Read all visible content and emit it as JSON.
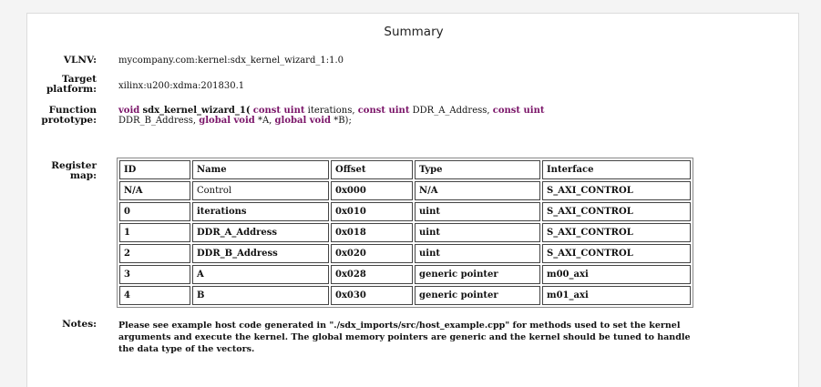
{
  "summary": {
    "title": "Summary",
    "vlnv_label": "VLNV:",
    "vlnv_value": "mycompany.com:kernel:sdx_kernel_wizard_1:1.0",
    "target_label_1": "Target",
    "target_label_2": "platform:",
    "target_value": "xilinx:u200:xdma:201830.1",
    "function_label_1": "Function",
    "function_label_2": "prototype:",
    "prototype": {
      "kw_void": "void",
      "func_name": "sdx_kernel_wizard_1(",
      "kw_const_uint_1": "const uint",
      "arg_iterations": "iterations,",
      "kw_const_uint_2": "const uint",
      "arg_ddr_a": "DDR_A_Address,",
      "kw_const_uint_3": "const uint",
      "arg_ddr_b": "DDR_B_Address,",
      "kw_global_void_1": "global void",
      "arg_a": "*A,",
      "kw_global_void_2": "global void",
      "arg_b": "*B);"
    },
    "register_label_1": "Register",
    "register_label_2": "map:",
    "register_map": {
      "headers": [
        "ID",
        "Name",
        "Offset",
        "Type",
        "Interface"
      ],
      "rows": [
        [
          "N/A",
          "Control",
          "0x000",
          "N/A",
          "S_AXI_CONTROL"
        ],
        [
          "0",
          "iterations",
          "0x010",
          "uint",
          "S_AXI_CONTROL"
        ],
        [
          "1",
          "DDR_A_Address",
          "0x018",
          "uint",
          "S_AXI_CONTROL"
        ],
        [
          "2",
          "DDR_B_Address",
          "0x020",
          "uint",
          "S_AXI_CONTROL"
        ],
        [
          "3",
          "A",
          "0x028",
          "generic pointer",
          "m00_axi"
        ],
        [
          "4",
          "B",
          "0x030",
          "generic pointer",
          "m01_axi"
        ]
      ]
    },
    "notes_label": "Notes:",
    "notes_text": "Please see example host code generated in \"./sdx_imports/src/host_example.cpp\" for methods used to set the kernel arguments and execute the kernel. The global memory pointers are generic and the kernel should be tuned to handle the data type of the vectors."
  },
  "colors": {
    "keyword": "#7a1468",
    "background": "#f4f4f4",
    "panel": "#ffffff"
  }
}
